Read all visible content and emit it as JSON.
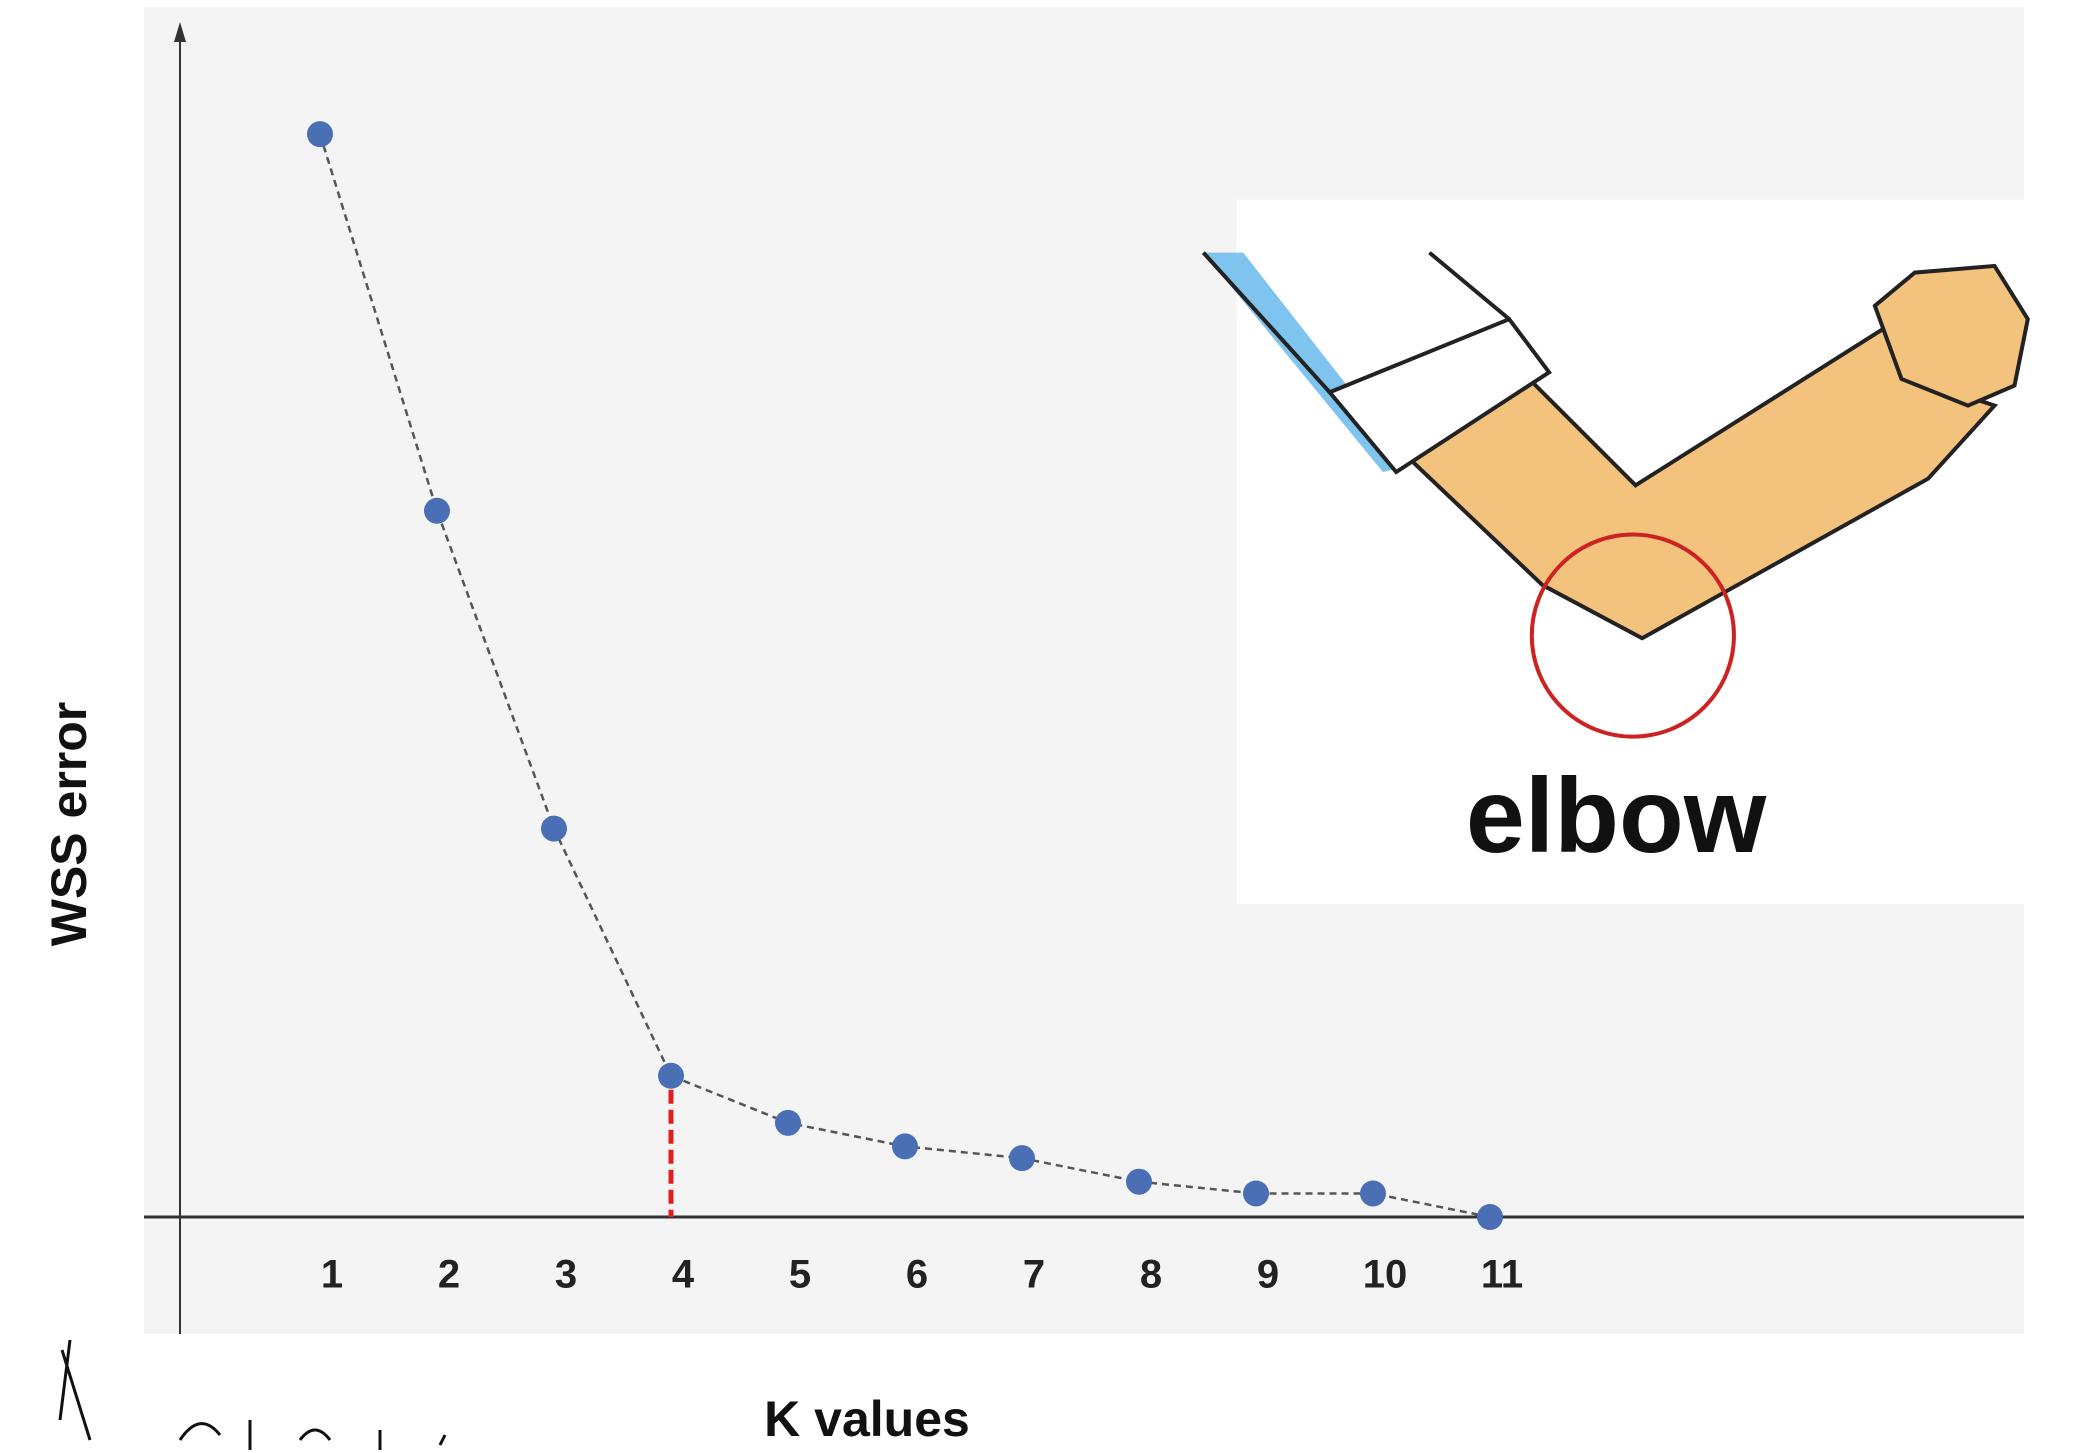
{
  "chart_data": {
    "type": "line",
    "y_label": "WSS error",
    "x_label": "K values",
    "annotation": "elbow",
    "categories": [
      "1",
      "2",
      "3",
      "4",
      "5",
      "6",
      "7",
      "8",
      "9",
      "10",
      "11"
    ],
    "series": [
      {
        "color": "#4a6fb5",
        "values": [
          92,
          60,
          33,
          12,
          8,
          6,
          5,
          3,
          2,
          2,
          0
        ]
      }
    ],
    "ylim": [
      0,
      100
    ],
    "elbow_k_index": 3,
    "elbow_color": "#e02020"
  }
}
